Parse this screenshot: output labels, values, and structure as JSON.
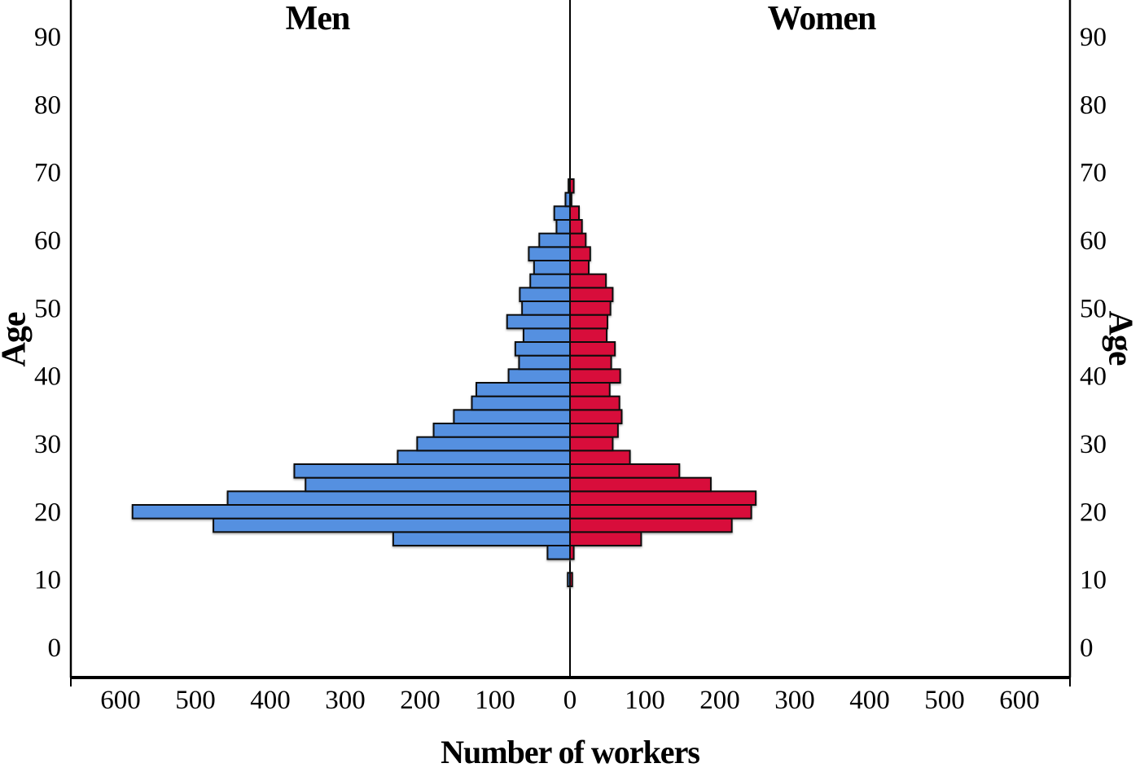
{
  "chart_data": {
    "type": "bar",
    "variant": "population-pyramid",
    "title_left": "Men",
    "title_right": "Women",
    "xlabel": "Number of workers",
    "ylabel_left": "Age",
    "ylabel_right": "Age",
    "legend_position": "none",
    "grid": false,
    "bin_width_years": 2,
    "y_ticks": [
      0,
      10,
      20,
      30,
      40,
      50,
      60,
      70,
      80,
      90
    ],
    "y_axis_range": [
      0,
      95
    ],
    "x_axis_range_per_side": [
      0,
      660
    ],
    "x_tick_labels": [
      "600",
      "500",
      "400",
      "300",
      "200",
      "100",
      "0",
      "100",
      "200",
      "300",
      "400",
      "500",
      "600"
    ],
    "x_tick_values": [
      -600,
      -500,
      -400,
      -300,
      -200,
      -100,
      0,
      100,
      200,
      300,
      400,
      500,
      600
    ],
    "colors": {
      "men": "#5590e0",
      "women": "#d80f3a",
      "bar_border": "#0a0a0a",
      "axis": "#000000",
      "background": "#ffffff"
    },
    "bins": [
      {
        "age": 9,
        "men": 3,
        "women": 3
      },
      {
        "age": 13,
        "men": 30,
        "women": 5
      },
      {
        "age": 15,
        "men": 236,
        "women": 95
      },
      {
        "age": 17,
        "men": 476,
        "women": 216
      },
      {
        "age": 19,
        "men": 584,
        "women": 242
      },
      {
        "age": 21,
        "men": 457,
        "women": 248
      },
      {
        "age": 23,
        "men": 353,
        "women": 188
      },
      {
        "age": 25,
        "men": 368,
        "women": 146
      },
      {
        "age": 27,
        "men": 230,
        "women": 80
      },
      {
        "age": 29,
        "men": 204,
        "women": 57
      },
      {
        "age": 31,
        "men": 182,
        "women": 64
      },
      {
        "age": 33,
        "men": 155,
        "women": 69
      },
      {
        "age": 35,
        "men": 131,
        "women": 66
      },
      {
        "age": 37,
        "men": 125,
        "women": 53
      },
      {
        "age": 39,
        "men": 82,
        "women": 67
      },
      {
        "age": 41,
        "men": 68,
        "women": 55
      },
      {
        "age": 43,
        "men": 73,
        "women": 60
      },
      {
        "age": 45,
        "men": 62,
        "women": 49
      },
      {
        "age": 47,
        "men": 84,
        "women": 50
      },
      {
        "age": 49,
        "men": 64,
        "women": 54
      },
      {
        "age": 51,
        "men": 67,
        "women": 57
      },
      {
        "age": 53,
        "men": 53,
        "women": 48
      },
      {
        "age": 55,
        "men": 48,
        "women": 25
      },
      {
        "age": 57,
        "men": 55,
        "women": 27
      },
      {
        "age": 59,
        "men": 41,
        "women": 21
      },
      {
        "age": 61,
        "men": 18,
        "women": 16
      },
      {
        "age": 63,
        "men": 21,
        "women": 12
      },
      {
        "age": 65,
        "men": 6,
        "women": 2
      },
      {
        "age": 67,
        "men": 2,
        "women": 5
      }
    ]
  }
}
